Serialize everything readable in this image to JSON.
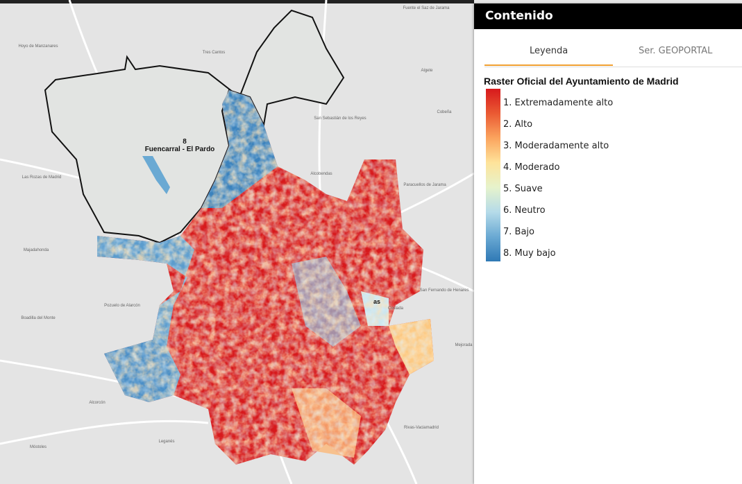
{
  "panel": {
    "title": "Contenido",
    "tabs": [
      "Leyenda",
      "Ser. GEOPORTAL"
    ]
  },
  "legend": {
    "title": "Raster Oficial del Ayuntamiento de Madrid",
    "items": [
      {
        "label": "1. Extremadamente alto",
        "color": "#d7191c"
      },
      {
        "label": "2. Alto",
        "color": "#ea5a33"
      },
      {
        "label": "3. Moderadamente alto",
        "color": "#fba45e"
      },
      {
        "label": "4. Moderado",
        "color": "#fee39a"
      },
      {
        "label": "5. Suave",
        "color": "#e6f3cc"
      },
      {
        "label": "6. Neutro",
        "color": "#b5dbe9"
      },
      {
        "label": "7. Bajo",
        "color": "#6aa9d3"
      },
      {
        "label": "8. Muy bajo",
        "color": "#2f79b5"
      }
    ]
  },
  "map": {
    "district_number": "8",
    "district_name": "Fuencarral - El Pardo",
    "fragment": "as",
    "places": [
      "Hoyo de Manzanares",
      "Tres Cantos",
      "Fuente el Saz de Jarama",
      "Algete",
      "San Sebastián de los Reyes",
      "Cobeña",
      "Alcobendas",
      "Las Rozas de Madrid",
      "Paracuellos de Jarama",
      "Majadahonda",
      "San Fernando de Henares",
      "Pozuelo de Alarcón",
      "Coslada",
      "Boadilla del Monte",
      "Mejorada",
      "Alcorcón",
      "Rivas-Vaciamadrid",
      "Leganés",
      "Móstoles"
    ]
  }
}
